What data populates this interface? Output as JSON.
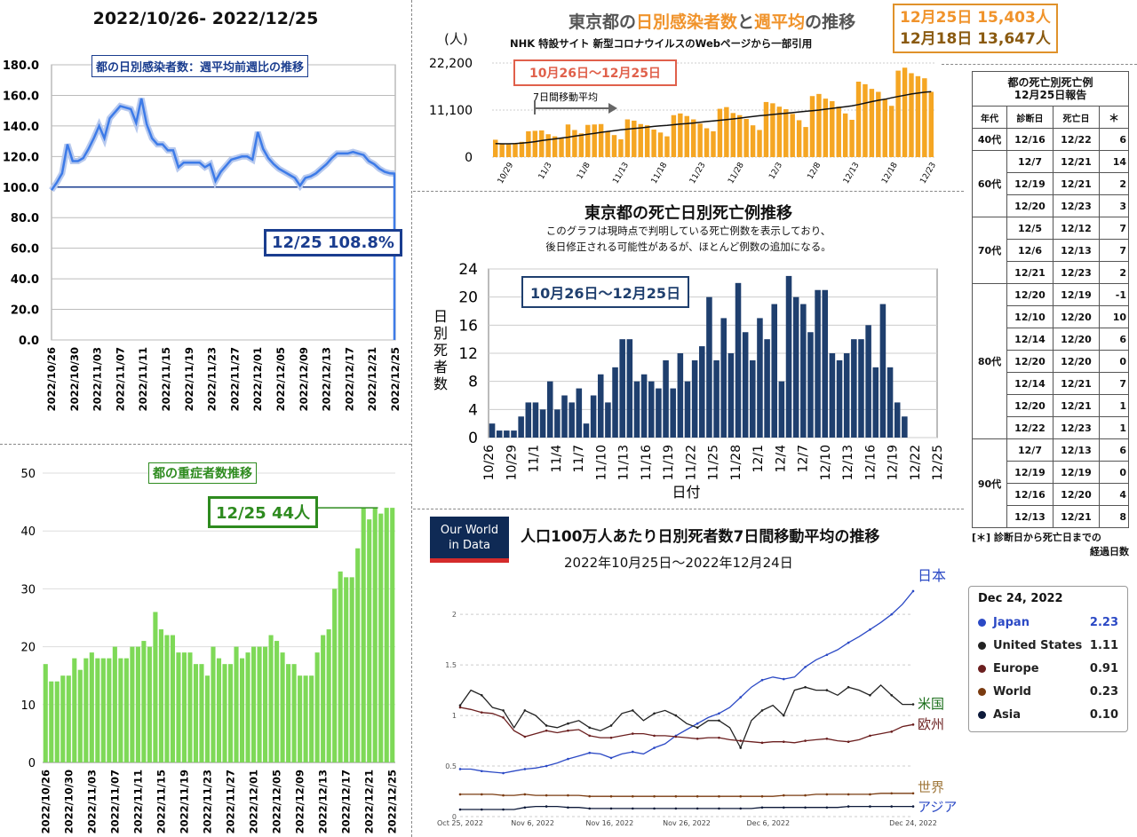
{
  "panel1": {
    "header": "2022/10/26- 2022/12/25",
    "label": "都の日別感染者数：週平均前週比の推移",
    "callout": "12/25 108.8%",
    "colors": {
      "line": "#3d7be8",
      "label": "#1a3d8f"
    }
  },
  "panel2": {
    "label": "都の重症者数推移",
    "callout": "12/25 44人",
    "colors": {
      "bar": "#7ed957",
      "label": "#2e8b1f"
    }
  },
  "panel3": {
    "title_parts": [
      "東京都の",
      "日別感染者数",
      "と",
      "週平均",
      "の推移"
    ],
    "subtitle": "NHK 特設サイト 新型コロナウイルスのWebページから一部引用",
    "unit": "(人)",
    "range_label": "10月26日〜12月25日",
    "ma_label": "7日間移動平均",
    "stat1": "12月25日 15,403人",
    "stat2": "12月18日 13,647人",
    "colors": {
      "bar": "#f5a623",
      "title_accent": "#f0932b"
    }
  },
  "panel4": {
    "title": "東京都の死亡日別死亡例推移",
    "note1": "このグラフは現時点で判明している死亡例数を表示しており、",
    "note2": "後日修正される可能性があるが、ほとんど例数の追加になる。",
    "range_label": "10月26日〜12月25日",
    "ylabel": "日別死者数",
    "xlabel": "日付",
    "colors": {
      "bar": "#1f3f6e"
    }
  },
  "panel5": {
    "logo_line1": "Our World",
    "logo_line2": "in Data",
    "title": "人口100万人あたり日別死者数7日間移動平均の推移",
    "subtitle": "2022年10月25日〜2022年12月24日",
    "series_labels": {
      "japan": "日本",
      "us": "米国",
      "europe": "欧州",
      "world": "世界",
      "asia": "アジア"
    },
    "legend": {
      "date": "Dec 24, 2022",
      "rows": [
        {
          "name": "Japan",
          "value": "2.23",
          "color": "#2b49c5"
        },
        {
          "name": "United States",
          "value": "1.11",
          "color": "#222222"
        },
        {
          "name": "Europe",
          "value": "0.91",
          "color": "#6b1f1f"
        },
        {
          "name": "World",
          "value": "0.23",
          "color": "#7a3b10"
        },
        {
          "name": "Asia",
          "value": "0.10",
          "color": "#0d1a3a"
        }
      ]
    }
  },
  "death_table": {
    "title1": "都の死亡別死亡例",
    "title2": "12月25日報告",
    "headers": [
      "年代",
      "診断日",
      "死亡日",
      "＊"
    ],
    "groups": [
      {
        "age": "40代",
        "rows": [
          [
            "12/16",
            "12/22",
            "6"
          ]
        ]
      },
      {
        "age": "60代",
        "rows": [
          [
            "12/7",
            "12/21",
            "14"
          ],
          [
            "12/19",
            "12/21",
            "2"
          ],
          [
            "12/20",
            "12/23",
            "3"
          ]
        ]
      },
      {
        "age": "70代",
        "rows": [
          [
            "12/5",
            "12/12",
            "7"
          ],
          [
            "12/6",
            "12/13",
            "7"
          ],
          [
            "12/21",
            "12/23",
            "2"
          ]
        ]
      },
      {
        "age": "80代",
        "rows": [
          [
            "12/20",
            "12/19",
            "-1"
          ],
          [
            "12/10",
            "12/20",
            "10"
          ],
          [
            "12/14",
            "12/20",
            "6"
          ],
          [
            "12/20",
            "12/20",
            "0"
          ],
          [
            "12/14",
            "12/21",
            "7"
          ],
          [
            "12/20",
            "12/21",
            "1"
          ],
          [
            "12/22",
            "12/23",
            "1"
          ]
        ]
      },
      {
        "age": "90代",
        "rows": [
          [
            "12/7",
            "12/13",
            "6"
          ],
          [
            "12/19",
            "12/19",
            "0"
          ],
          [
            "12/16",
            "12/20",
            "4"
          ],
          [
            "12/13",
            "12/21",
            "8"
          ]
        ]
      }
    ],
    "footnote1": "[＊] 診断日から死亡日までの",
    "footnote2": "経過日数"
  },
  "chart_data": [
    {
      "id": "ratio",
      "type": "line",
      "ylim": [
        0,
        180
      ],
      "yticks": [
        0.0,
        20.0,
        40.0,
        60.0,
        80.0,
        100.0,
        120.0,
        140.0,
        160.0,
        180.0
      ],
      "x_tick_labels": [
        "2022/10/26",
        "2022/10/30",
        "2022/11/03",
        "2022/11/07",
        "2022/11/11",
        "2022/11/15",
        "2022/11/19",
        "2022/11/23",
        "2022/11/27",
        "2022/12/01",
        "2022/12/05",
        "2022/12/09",
        "2022/12/13",
        "2022/12/17",
        "2022/12/21",
        "2022/12/25"
      ],
      "reference": 100.0,
      "values": [
        98,
        103,
        109,
        128,
        117,
        117,
        119,
        125,
        132,
        140,
        132,
        145,
        149,
        153,
        152,
        151,
        142,
        158,
        141,
        132,
        128,
        128,
        124,
        124,
        113,
        116,
        116,
        116,
        116,
        113,
        115,
        104,
        110,
        114,
        118,
        119,
        120,
        120,
        118,
        136,
        125,
        119,
        115,
        112,
        110,
        108,
        106,
        101,
        106,
        107,
        109,
        112,
        115,
        119,
        122,
        122,
        122,
        123,
        122,
        121,
        117,
        115,
        112,
        110,
        109,
        108.8
      ]
    },
    {
      "id": "severe",
      "type": "bar",
      "ylim": [
        0,
        50
      ],
      "yticks": [
        0,
        10,
        20,
        30,
        40,
        50
      ],
      "x_tick_labels": [
        "2022/10/26",
        "2022/10/30",
        "2022/11/03",
        "2022/11/07",
        "2022/11/11",
        "2022/11/15",
        "2022/11/19",
        "2022/11/23",
        "2022/11/27",
        "2022/12/01",
        "2022/12/05",
        "2022/12/09",
        "2022/12/13",
        "2022/12/17",
        "2022/12/21",
        "2022/12/25"
      ],
      "values": [
        17,
        14,
        14,
        15,
        15,
        18,
        16,
        18,
        19,
        18,
        18,
        18,
        20,
        18,
        18,
        20,
        20,
        21,
        20,
        26,
        23,
        22,
        22,
        19,
        19,
        19,
        17,
        17,
        15,
        20,
        18,
        17,
        17,
        20,
        18,
        19,
        20,
        20,
        20,
        22,
        21,
        19,
        17,
        17,
        15,
        15,
        15,
        19,
        22,
        23,
        30,
        33,
        32,
        32,
        37,
        44,
        42,
        44,
        43,
        44,
        44
      ],
      "callout_value": 44
    },
    {
      "id": "infections",
      "type": "bar",
      "ylim": [
        0,
        22200
      ],
      "yticks": [
        0,
        11100,
        22200
      ],
      "x_tick_labels": [
        "10/29",
        "11/3",
        "11/8",
        "11/13",
        "11/18",
        "11/23",
        "11/28",
        "12/3",
        "12/8",
        "12/13",
        "12/18",
        "12/23"
      ],
      "values": [
        4100,
        3200,
        3000,
        3300,
        3600,
        6100,
        6200,
        6300,
        5400,
        4900,
        4500,
        7700,
        6400,
        5600,
        7600,
        7700,
        7800,
        6000,
        5200,
        4200,
        8900,
        8600,
        7800,
        7500,
        6500,
        5800,
        4900,
        9900,
        10300,
        9700,
        8900,
        7900,
        6800,
        6100,
        11400,
        11800,
        10400,
        9900,
        9000,
        7500,
        6400,
        13000,
        12700,
        11900,
        11300,
        10200,
        8700,
        7100,
        14400,
        14900,
        13800,
        13200,
        11900,
        10300,
        8800,
        17800,
        17200,
        16100,
        15400,
        13700,
        12100,
        20400,
        21100,
        19800,
        19100,
        18600,
        15403
      ],
      "ma": [
        3200,
        3150,
        3150,
        3200,
        3300,
        3450,
        3650,
        3900,
        4100,
        4300,
        4500,
        4700,
        4950,
        5150,
        5400,
        5600,
        5850,
        6050,
        6250,
        6450,
        6600,
        6750,
        6900,
        7050,
        7250,
        7400,
        7500,
        7650,
        7800,
        7900,
        8050,
        8200,
        8400,
        8550,
        8700,
        8850,
        9000,
        9200,
        9400,
        9600,
        9750,
        9900,
        10050,
        10200,
        10350,
        10500,
        10650,
        10800,
        10950,
        11100,
        11300,
        11500,
        11700,
        11900,
        12100,
        12400,
        12750,
        13100,
        13400,
        13647,
        14000,
        14300,
        14600,
        14900,
        15100,
        15300,
        15450
      ]
    },
    {
      "id": "deaths",
      "type": "bar",
      "ylim": [
        0,
        24
      ],
      "yticks": [
        0,
        4,
        8,
        12,
        16,
        20,
        24
      ],
      "x_tick_labels": [
        "10/26",
        "10/29",
        "11/1",
        "11/4",
        "11/7",
        "11/10",
        "11/13",
        "11/16",
        "11/19",
        "11/22",
        "11/25",
        "11/28",
        "12/1",
        "12/4",
        "12/7",
        "12/10",
        "12/13",
        "12/16",
        "12/19",
        "12/22",
        "12/25"
      ],
      "values": [
        2,
        1,
        1,
        1,
        3,
        5,
        5,
        4,
        8,
        4,
        6,
        5,
        7,
        2,
        6,
        9,
        5,
        10,
        14,
        14,
        8,
        9,
        8,
        7,
        11,
        7,
        12,
        8,
        11,
        13,
        20,
        11,
        17,
        12,
        22,
        15,
        11,
        17,
        14,
        19,
        8,
        23,
        20,
        19,
        15,
        21,
        21,
        12,
        11,
        12,
        14,
        14,
        16,
        10,
        19,
        10,
        5,
        3,
        0,
        0,
        0,
        0
      ]
    },
    {
      "id": "owid",
      "type": "line",
      "ylim": [
        0,
        2.3
      ],
      "yticks": [
        0,
        0.5,
        1,
        1.5,
        2
      ],
      "ytick_labels": [
        "0",
        "0.5",
        "1",
        "1.5",
        "2"
      ],
      "x_tick_labels": [
        "Oct 25, 2022",
        "Nov 6, 2022",
        "Nov 16, 2022",
        "Nov 26, 2022",
        "Dec 6, 2022",
        "Dec 24, 2022"
      ],
      "series": [
        {
          "name": "Japan",
          "values": [
            0.47,
            0.47,
            0.45,
            0.44,
            0.43,
            0.45,
            0.47,
            0.48,
            0.5,
            0.53,
            0.57,
            0.6,
            0.63,
            0.62,
            0.58,
            0.62,
            0.64,
            0.62,
            0.68,
            0.72,
            0.8,
            0.86,
            0.92,
            0.98,
            1.02,
            1.08,
            1.18,
            1.28,
            1.35,
            1.38,
            1.36,
            1.38,
            1.48,
            1.55,
            1.6,
            1.65,
            1.72,
            1.78,
            1.85,
            1.92,
            2.0,
            2.1,
            2.23
          ]
        },
        {
          "name": "United States",
          "values": [
            1.1,
            1.25,
            1.2,
            1.08,
            1.05,
            0.88,
            1.05,
            1.0,
            0.9,
            0.88,
            0.92,
            0.95,
            0.88,
            0.85,
            0.9,
            1.02,
            1.05,
            0.95,
            1.02,
            1.05,
            1.0,
            0.92,
            0.88,
            0.95,
            0.95,
            0.88,
            0.68,
            0.95,
            1.05,
            1.1,
            1.0,
            1.25,
            1.28,
            1.25,
            1.25,
            1.2,
            1.28,
            1.25,
            1.2,
            1.3,
            1.2,
            1.11,
            1.11
          ]
        },
        {
          "name": "Europe",
          "values": [
            1.08,
            1.06,
            1.03,
            1.02,
            0.98,
            0.85,
            0.79,
            0.82,
            0.85,
            0.83,
            0.85,
            0.86,
            0.8,
            0.78,
            0.78,
            0.8,
            0.82,
            0.82,
            0.8,
            0.8,
            0.79,
            0.78,
            0.77,
            0.78,
            0.78,
            0.76,
            0.75,
            0.74,
            0.73,
            0.74,
            0.74,
            0.73,
            0.75,
            0.76,
            0.77,
            0.75,
            0.74,
            0.76,
            0.8,
            0.82,
            0.84,
            0.89,
            0.91
          ]
        },
        {
          "name": "World",
          "values": [
            0.22,
            0.22,
            0.22,
            0.22,
            0.21,
            0.21,
            0.22,
            0.21,
            0.21,
            0.21,
            0.21,
            0.21,
            0.2,
            0.2,
            0.2,
            0.2,
            0.2,
            0.2,
            0.2,
            0.2,
            0.2,
            0.2,
            0.2,
            0.2,
            0.2,
            0.2,
            0.2,
            0.2,
            0.2,
            0.2,
            0.21,
            0.21,
            0.21,
            0.22,
            0.22,
            0.22,
            0.22,
            0.22,
            0.22,
            0.23,
            0.23,
            0.23,
            0.23
          ]
        },
        {
          "name": "Asia",
          "values": [
            0.07,
            0.07,
            0.07,
            0.07,
            0.07,
            0.07,
            0.09,
            0.1,
            0.1,
            0.1,
            0.09,
            0.09,
            0.08,
            0.08,
            0.08,
            0.08,
            0.08,
            0.08,
            0.08,
            0.08,
            0.08,
            0.08,
            0.08,
            0.08,
            0.08,
            0.08,
            0.08,
            0.08,
            0.09,
            0.09,
            0.09,
            0.09,
            0.09,
            0.09,
            0.09,
            0.09,
            0.1,
            0.1,
            0.1,
            0.1,
            0.1,
            0.1,
            0.1
          ]
        }
      ]
    }
  ]
}
